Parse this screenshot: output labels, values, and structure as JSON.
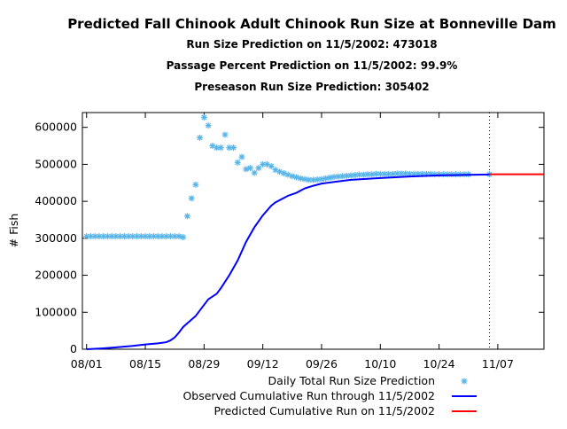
{
  "chart_data": {
    "type": "scatter",
    "title": "Predicted Fall Chinook Adult Chinook Run Size at Bonneville Dam",
    "subtitles": [
      "Run Size Prediction on 11/5/2002: 473018",
      "Passage Percent Prediction on 11/5/2002: 99.9%",
      "Preseason Run Size Prediction: 305402"
    ],
    "xlabel": "",
    "ylabel": "# Fish",
    "year": 2002,
    "xlim": [
      "07/31",
      "11/18"
    ],
    "ylim": [
      0,
      640000
    ],
    "xticks": [
      "08/01",
      "08/15",
      "08/29",
      "09/12",
      "09/26",
      "10/10",
      "10/24",
      "11/07"
    ],
    "yticks": [
      0,
      100000,
      200000,
      300000,
      400000,
      500000,
      600000
    ],
    "grid": false,
    "legend_position": "bottom",
    "marker_line_date": "11/05",
    "series": [
      {
        "name": "Daily Total Run Size Prediction",
        "type": "scatter",
        "marker": "asterisk",
        "color": "#56b4e9",
        "points": [
          [
            "08/01",
            305402
          ],
          [
            "08/02",
            305402
          ],
          [
            "08/03",
            305402
          ],
          [
            "08/04",
            305402
          ],
          [
            "08/05",
            305402
          ],
          [
            "08/06",
            305402
          ],
          [
            "08/07",
            305402
          ],
          [
            "08/08",
            305402
          ],
          [
            "08/09",
            305402
          ],
          [
            "08/10",
            305402
          ],
          [
            "08/11",
            305402
          ],
          [
            "08/12",
            305402
          ],
          [
            "08/13",
            305402
          ],
          [
            "08/14",
            305402
          ],
          [
            "08/15",
            305402
          ],
          [
            "08/16",
            305402
          ],
          [
            "08/17",
            305402
          ],
          [
            "08/18",
            305402
          ],
          [
            "08/19",
            305402
          ],
          [
            "08/20",
            305402
          ],
          [
            "08/21",
            305402
          ],
          [
            "08/22",
            305402
          ],
          [
            "08/23",
            305402
          ],
          [
            "08/24",
            303000
          ],
          [
            "08/25",
            360000
          ],
          [
            "08/26",
            408000
          ],
          [
            "08/27",
            445000
          ],
          [
            "08/28",
            572000
          ],
          [
            "08/29",
            627000
          ],
          [
            "08/30",
            605000
          ],
          [
            "08/31",
            550000
          ],
          [
            "09/01",
            545000
          ],
          [
            "09/02",
            545000
          ],
          [
            "09/03",
            580000
          ],
          [
            "09/04",
            545000
          ],
          [
            "09/05",
            545000
          ],
          [
            "09/06",
            505000
          ],
          [
            "09/07",
            520000
          ],
          [
            "09/08",
            487000
          ],
          [
            "09/09",
            490000
          ],
          [
            "09/10",
            477000
          ],
          [
            "09/11",
            490000
          ],
          [
            "09/12",
            500000
          ],
          [
            "09/13",
            500000
          ],
          [
            "09/14",
            495000
          ],
          [
            "09/15",
            485000
          ],
          [
            "09/16",
            480000
          ],
          [
            "09/17",
            476000
          ],
          [
            "09/18",
            472000
          ],
          [
            "09/19",
            468000
          ],
          [
            "09/20",
            465000
          ],
          [
            "09/21",
            462000
          ],
          [
            "09/22",
            460000
          ],
          [
            "09/23",
            458000
          ],
          [
            "09/24",
            458000
          ],
          [
            "09/25",
            459000
          ],
          [
            "09/26",
            460000
          ],
          [
            "09/27",
            462000
          ],
          [
            "09/28",
            464000
          ],
          [
            "09/29",
            466000
          ],
          [
            "09/30",
            467000
          ],
          [
            "10/01",
            468000
          ],
          [
            "10/02",
            469000
          ],
          [
            "10/03",
            470000
          ],
          [
            "10/04",
            471000
          ],
          [
            "10/05",
            472000
          ],
          [
            "10/06",
            472000
          ],
          [
            "10/07",
            473000
          ],
          [
            "10/08",
            473000
          ],
          [
            "10/09",
            474000
          ],
          [
            "10/10",
            474000
          ],
          [
            "10/11",
            474000
          ],
          [
            "10/12",
            474000
          ],
          [
            "10/13",
            474000
          ],
          [
            "10/14",
            475000
          ],
          [
            "10/15",
            475000
          ],
          [
            "10/16",
            475000
          ],
          [
            "10/17",
            474000
          ],
          [
            "10/18",
            474000
          ],
          [
            "10/19",
            474000
          ],
          [
            "10/20",
            474000
          ],
          [
            "10/21",
            474000
          ],
          [
            "10/22",
            474000
          ],
          [
            "10/23",
            473000
          ],
          [
            "10/24",
            473000
          ],
          [
            "10/25",
            473000
          ],
          [
            "10/26",
            473000
          ],
          [
            "10/27",
            473000
          ],
          [
            "10/28",
            473000
          ],
          [
            "10/29",
            473000
          ],
          [
            "10/30",
            473000
          ],
          [
            "10/31",
            473000
          ],
          [
            "11/05",
            473018
          ]
        ]
      },
      {
        "name": "Observed Cumulative Run through 11/5/2002",
        "type": "line",
        "color": "#0000ff",
        "points": [
          [
            "08/01",
            0
          ],
          [
            "08/05",
            2500
          ],
          [
            "08/08",
            5000
          ],
          [
            "08/12",
            9000
          ],
          [
            "08/15",
            13000
          ],
          [
            "08/18",
            16000
          ],
          [
            "08/20",
            19000
          ],
          [
            "08/21",
            24000
          ],
          [
            "08/22",
            32000
          ],
          [
            "08/23",
            45000
          ],
          [
            "08/24",
            60000
          ],
          [
            "08/25",
            70000
          ],
          [
            "08/27",
            90000
          ],
          [
            "08/28",
            105000
          ],
          [
            "08/29",
            120000
          ],
          [
            "08/30",
            135000
          ],
          [
            "09/01",
            150000
          ],
          [
            "09/02",
            165000
          ],
          [
            "09/04",
            200000
          ],
          [
            "09/06",
            240000
          ],
          [
            "09/08",
            290000
          ],
          [
            "09/09",
            310000
          ],
          [
            "09/10",
            330000
          ],
          [
            "09/12",
            362000
          ],
          [
            "09/14",
            388000
          ],
          [
            "09/15",
            397000
          ],
          [
            "09/18",
            415000
          ],
          [
            "09/20",
            423000
          ],
          [
            "09/22",
            435000
          ],
          [
            "09/24",
            442000
          ],
          [
            "09/26",
            448000
          ],
          [
            "09/30",
            454000
          ],
          [
            "10/03",
            458000
          ],
          [
            "10/10",
            463000
          ],
          [
            "10/17",
            467000
          ],
          [
            "10/24",
            470000
          ],
          [
            "10/31",
            471500
          ],
          [
            "11/05",
            472500
          ]
        ]
      },
      {
        "name": "Predicted Cumulative Run on 11/5/2002",
        "type": "line",
        "color": "#ff0000",
        "points": [
          [
            "11/05",
            473018
          ],
          [
            "11/18",
            473018
          ]
        ]
      }
    ]
  }
}
